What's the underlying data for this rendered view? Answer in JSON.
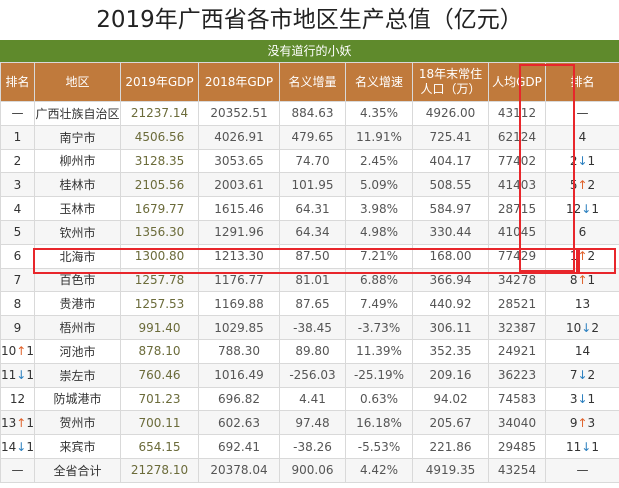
{
  "title": "2019年广西省各市地区生产总值（亿元）",
  "subtitle": "没有道行的小妖",
  "colors": {
    "header_bg": "#c07a3c",
    "subtitle_bg": "#5f8a2c",
    "highlight": "#e8262b"
  },
  "headers": [
    "排名",
    "地区",
    "2019年GDP",
    "2018年GDP",
    "名义增量",
    "名义增速",
    "18年末常住人口（万）",
    "人均GDP",
    "排名"
  ],
  "rows": [
    [
      "—",
      "广西壮族自治区",
      "21237.14",
      "20352.51",
      "884.63",
      "4.35%",
      "4926.00",
      "43112",
      "—"
    ],
    [
      "1",
      "南宁市",
      "4506.56",
      "4026.91",
      "479.65",
      "11.91%",
      "725.41",
      "62124",
      "4"
    ],
    [
      "2",
      "柳州市",
      "3128.35",
      "3053.65",
      "74.70",
      "2.45%",
      "404.17",
      "77402",
      "2↓1"
    ],
    [
      "3",
      "桂林市",
      "2105.56",
      "2003.61",
      "101.95",
      "5.09%",
      "508.55",
      "41403",
      "5↑2"
    ],
    [
      "4",
      "玉林市",
      "1679.77",
      "1615.46",
      "64.31",
      "3.98%",
      "584.97",
      "28715",
      "12↓1"
    ],
    [
      "5",
      "钦州市",
      "1356.30",
      "1291.96",
      "64.34",
      "4.98%",
      "330.44",
      "41045",
      "6"
    ],
    [
      "6",
      "北海市",
      "1300.80",
      "1213.30",
      "87.50",
      "7.21%",
      "168.00",
      "77429",
      "1↑2"
    ],
    [
      "7",
      "百色市",
      "1257.78",
      "1176.77",
      "81.01",
      "6.88%",
      "366.94",
      "34278",
      "8↑1"
    ],
    [
      "8",
      "贵港市",
      "1257.53",
      "1169.88",
      "87.65",
      "7.49%",
      "440.92",
      "28521",
      "13"
    ],
    [
      "9",
      "梧州市",
      "991.40",
      "1029.85",
      "-38.45",
      "-3.73%",
      "306.11",
      "32387",
      "10↓2"
    ],
    [
      "10↑1",
      "河池市",
      "878.10",
      "788.30",
      "89.80",
      "11.39%",
      "352.35",
      "24921",
      "14"
    ],
    [
      "11↓1",
      "崇左市",
      "760.46",
      "1016.49",
      "-256.03",
      "-25.19%",
      "209.16",
      "36223",
      "7↓2"
    ],
    [
      "12",
      "防城港市",
      "701.23",
      "696.82",
      "4.41",
      "0.63%",
      "94.02",
      "74583",
      "3↓1"
    ],
    [
      "13↑1",
      "贺州市",
      "700.11",
      "602.63",
      "97.48",
      "16.18%",
      "205.67",
      "34040",
      "9↑3"
    ],
    [
      "14↓1",
      "来宾市",
      "654.15",
      "692.41",
      "-38.26",
      "-5.53%",
      "221.86",
      "29485",
      "11↓1"
    ],
    [
      "—",
      "全省合计",
      "21278.10",
      "20378.04",
      "900.06",
      "4.42%",
      "4919.35",
      "43254",
      "—"
    ]
  ]
}
